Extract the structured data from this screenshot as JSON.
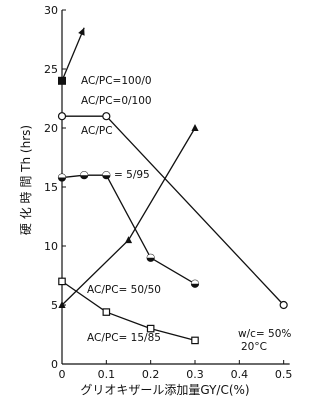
{
  "chart_data": {
    "type": "line",
    "title": "",
    "xlabel": "グリオキザール添加量GY/C(%)",
    "ylabel": "硬 化 時 間 Th (hrs)",
    "xlim": [
      0,
      0.6
    ],
    "ylim": [
      0,
      30
    ],
    "x_ticks": [
      "0",
      "0.1",
      "0.2",
      "0.3",
      "0.4",
      "0.5"
    ],
    "y_ticks": [
      "0",
      "5",
      "10",
      "15",
      "20",
      "25",
      "30"
    ],
    "grid": false,
    "series": [
      {
        "name": "AC/PC=100/0",
        "marker": "square-filled",
        "arrow": true,
        "x": [
          0,
          0.05
        ],
        "y": [
          24,
          28.5
        ]
      },
      {
        "name": "AC/PC=0/100",
        "marker": "circle-open",
        "arrow": false,
        "x": [
          0,
          0.1,
          0.5
        ],
        "y": [
          21,
          21,
          5
        ]
      },
      {
        "name": "AC/PC=5/95",
        "marker": "circle-half",
        "arrow": false,
        "x": [
          0,
          0.05,
          0.1,
          0.2,
          0.3
        ],
        "y": [
          15.8,
          16,
          16,
          9,
          6.8
        ]
      },
      {
        "name": "AC/PC=50/50",
        "marker": "triangle-filled",
        "arrow": false,
        "x": [
          0,
          0.15,
          0.3
        ],
        "y": [
          5,
          10.5,
          20
        ]
      },
      {
        "name": "AC/PC=15/85",
        "marker": "square-open",
        "arrow": false,
        "x": [
          0,
          0.1,
          0.2,
          0.3
        ],
        "y": [
          7,
          4.4,
          3,
          2
        ]
      }
    ],
    "annotations": {
      "ac100": "AC/PC=100/0",
      "ac0": "AC/PC=0/100",
      "ac5a": "AC/PC",
      "ac5b": "= 5/95",
      "ac50": "AC/PC= 50/50",
      "ac15": "AC/PC= 15/85",
      "wc": "w/c= 50%",
      "temp": "20°C"
    }
  }
}
